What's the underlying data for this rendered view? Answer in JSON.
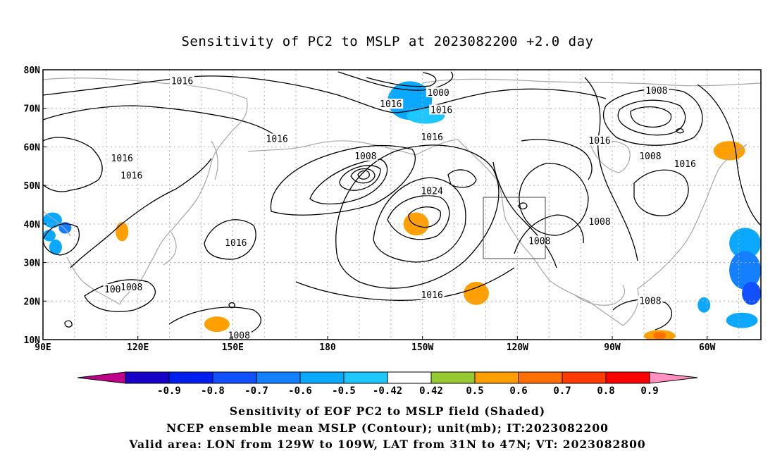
{
  "title": "Sensitivity of PC2 to MSLP at 2023082200 +2.0 day",
  "captions": [
    "Sensitivity of EOF PC2 to MSLP field (Shaded)",
    "NCEP ensemble mean MSLP (Contour); unit(mb); IT:2023082200",
    "Valid area: LON from 129W to 109W, LAT from 31N to 47N; VT: 2023082800"
  ],
  "map": {
    "lon_range": [
      90,
      317
    ],
    "lat_range": [
      10,
      80
    ],
    "lon_ticks": [
      {
        "lon": 90,
        "label": "90E"
      },
      {
        "lon": 120,
        "label": "120E"
      },
      {
        "lon": 150,
        "label": "150E"
      },
      {
        "lon": 180,
        "label": "180"
      },
      {
        "lon": 210,
        "label": "150W"
      },
      {
        "lon": 240,
        "label": "120W"
      },
      {
        "lon": 270,
        "label": "90W"
      },
      {
        "lon": 300,
        "label": "60W"
      }
    ],
    "lat_ticks": [
      {
        "lat": 10,
        "label": "10N"
      },
      {
        "lat": 20,
        "label": "20N"
      },
      {
        "lat": 30,
        "label": "30N"
      },
      {
        "lat": 40,
        "label": "40N"
      },
      {
        "lat": 50,
        "label": "50N"
      },
      {
        "lat": 60,
        "label": "60N"
      },
      {
        "lat": 70,
        "label": "70N"
      },
      {
        "lat": 80,
        "label": "80N"
      }
    ],
    "valid_box": {
      "lon": [
        231,
        251
      ],
      "lat": [
        31,
        47
      ]
    },
    "contour_labels": [
      {
        "text": "1016",
        "lon": 134,
        "lat": 77
      },
      {
        "text": "1000",
        "lon": 215,
        "lat": 74
      },
      {
        "text": "1016",
        "lon": 200,
        "lat": 71
      },
      {
        "text": "1016",
        "lon": 216,
        "lat": 69.5
      },
      {
        "text": "1008",
        "lon": 284,
        "lat": 74.5
      },
      {
        "text": "1016",
        "lon": 164,
        "lat": 62
      },
      {
        "text": "1016",
        "lon": 213,
        "lat": 62.5
      },
      {
        "text": "1016",
        "lon": 266,
        "lat": 61.5
      },
      {
        "text": "1016",
        "lon": 115,
        "lat": 57
      },
      {
        "text": "1008",
        "lon": 192,
        "lat": 57.5
      },
      {
        "text": "1008",
        "lon": 282,
        "lat": 57.5
      },
      {
        "text": "1016",
        "lon": 293,
        "lat": 55.5
      },
      {
        "text": "1016",
        "lon": 118,
        "lat": 52.5
      },
      {
        "text": "1024",
        "lon": 213,
        "lat": 48.5
      },
      {
        "text": "1008",
        "lon": 266,
        "lat": 40.5
      },
      {
        "text": "1016",
        "lon": 151,
        "lat": 35
      },
      {
        "text": "1008",
        "lon": 247,
        "lat": 35.5
      },
      {
        "text": "1008",
        "lon": 118,
        "lat": 23.5
      },
      {
        "text": "100",
        "lon": 112,
        "lat": 23
      },
      {
        "text": "1016",
        "lon": 213,
        "lat": 21.5
      },
      {
        "text": "1008",
        "lon": 282,
        "lat": 20
      },
      {
        "text": "1008",
        "lon": 152,
        "lat": 11
      }
    ]
  },
  "colorbar": {
    "labels": [
      "-0.9",
      "-0.8",
      "-0.7",
      "-0.6",
      "-0.5",
      "-0.42",
      "0.42",
      "0.5",
      "0.6",
      "0.7",
      "0.8",
      "0.9"
    ],
    "colors": [
      "#c0008a",
      "#1800c8",
      "#0020f0",
      "#1050ff",
      "#1480ff",
      "#0aa8ff",
      "#1ec8ff",
      "#ffffff",
      "#96c832",
      "#ffa000",
      "#ff7000",
      "#ff3c00",
      "#ff0000",
      "#ff90c0"
    ]
  },
  "chart_data": {
    "type": "heatmap",
    "title": "Sensitivity of PC2 to MSLP at 2023082200 +2.0 day",
    "shaded_patches": [
      {
        "value": -0.5,
        "lon": 206,
        "lat": 72,
        "dlon": 7,
        "dlat": 5
      },
      {
        "value": -0.42,
        "lon": 211,
        "lat": 68,
        "dlon": 6,
        "dlat": 2
      },
      {
        "value": -0.5,
        "lon": 93,
        "lat": 41,
        "dlon": 3,
        "dlat": 2
      },
      {
        "value": -0.6,
        "lon": 97,
        "lat": 39,
        "dlon": 2,
        "dlat": 1.5
      },
      {
        "value": -0.5,
        "lon": 94,
        "lat": 34,
        "dlon": 2,
        "dlat": 2
      },
      {
        "value": -0.5,
        "lon": 92,
        "lat": 37,
        "dlon": 2,
        "dlat": 1.5
      },
      {
        "value": 0.5,
        "lon": 115,
        "lat": 38,
        "dlon": 2,
        "dlat": 2.5
      },
      {
        "value": 0.5,
        "lon": 145,
        "lat": 14,
        "dlon": 4,
        "dlat": 2
      },
      {
        "value": 0.5,
        "lon": 208,
        "lat": 40,
        "dlon": 4,
        "dlat": 3
      },
      {
        "value": 0.5,
        "lon": 227,
        "lat": 22,
        "dlon": 4,
        "dlat": 3
      },
      {
        "value": 0.5,
        "lon": 307,
        "lat": 59,
        "dlon": 5,
        "dlat": 2.5
      },
      {
        "value": -0.5,
        "lon": 312,
        "lat": 35,
        "dlon": 5,
        "dlat": 4
      },
      {
        "value": -0.6,
        "lon": 312,
        "lat": 28,
        "dlon": 5,
        "dlat": 5
      },
      {
        "value": -0.7,
        "lon": 314,
        "lat": 22,
        "dlon": 3,
        "dlat": 3
      },
      {
        "value": -0.5,
        "lon": 311,
        "lat": 15,
        "dlon": 5,
        "dlat": 2
      },
      {
        "value": -0.5,
        "lon": 299,
        "lat": 19,
        "dlon": 2,
        "dlat": 2
      },
      {
        "value": 0.5,
        "lon": 285,
        "lat": 11,
        "dlon": 5,
        "dlat": 1.5
      },
      {
        "value": 0.6,
        "lon": 285,
        "lat": 11,
        "dlon": 2,
        "dlat": 1
      }
    ]
  }
}
